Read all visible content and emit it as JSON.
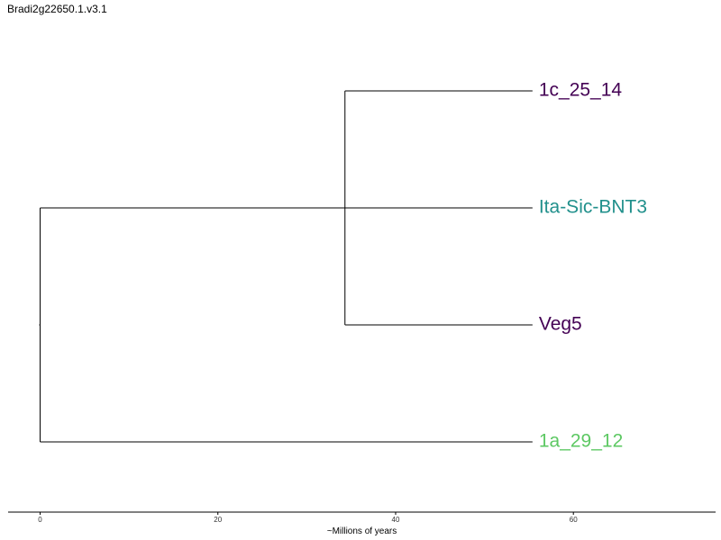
{
  "title": "Bradi2g22650.1.v3.1",
  "axis": {
    "label": "~Millions of years",
    "ticks": [
      0,
      20,
      40,
      60
    ],
    "range": [
      -3.6,
      76
    ]
  },
  "tree": {
    "root_x": 0,
    "clade_node_x": 34.3,
    "tip_x": 55.4,
    "tips": [
      {
        "label": "1c_25_14",
        "color": "#440154"
      },
      {
        "label": "Ita-Sic-BNT3",
        "color": "#21908C"
      },
      {
        "label": "Veg5",
        "color": "#440154"
      },
      {
        "label": "1a_29_12",
        "color": "#5DC863"
      }
    ]
  }
}
